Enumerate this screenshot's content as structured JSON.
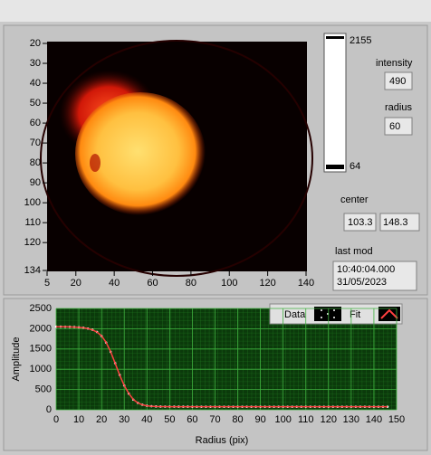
{
  "image_panel": {
    "yticks": [
      20,
      30,
      40,
      50,
      60,
      70,
      80,
      90,
      100,
      110,
      120,
      134
    ],
    "ylim": [
      20,
      134
    ],
    "xticks": [
      5,
      20,
      40,
      60,
      80,
      100,
      120,
      140
    ],
    "xlim": [
      5,
      140
    ],
    "colorbar": {
      "max": 2155,
      "min": 64
    }
  },
  "controls": {
    "intensity": {
      "label": "intensity",
      "value": 490
    },
    "radius": {
      "label": "radius",
      "value": 60
    },
    "center": {
      "label": "center",
      "x": 103.3,
      "y": 148.3
    },
    "last_mod": {
      "label": "last mod",
      "time": "10:40:04.000",
      "date": "31/05/2023"
    }
  },
  "chart_data": {
    "type": "line",
    "xlabel": "Radius (pix)",
    "ylabel": "Amplitude",
    "xlim": [
      0,
      150
    ],
    "ylim": [
      0,
      2500
    ],
    "xticks": [
      0,
      10,
      20,
      30,
      40,
      50,
      60,
      70,
      80,
      90,
      100,
      110,
      120,
      130,
      140,
      150
    ],
    "yticks": [
      0,
      500,
      1000,
      1500,
      2000,
      2500
    ],
    "x": [
      0,
      2,
      4,
      6,
      8,
      10,
      12,
      14,
      16,
      18,
      20,
      22,
      24,
      26,
      28,
      30,
      32,
      34,
      36,
      38,
      40,
      42,
      44,
      46,
      48,
      50,
      52,
      54,
      56,
      58,
      60,
      62,
      64,
      66,
      68,
      70,
      72,
      74,
      76,
      78,
      80,
      82,
      84,
      86,
      88,
      90,
      92,
      94,
      96,
      98,
      100,
      102,
      104,
      106,
      108,
      110,
      112,
      114,
      116,
      118,
      120,
      122,
      124,
      126,
      128,
      130,
      132,
      134,
      136,
      138,
      140,
      142,
      144,
      146
    ],
    "series": [
      {
        "name": "Data",
        "color": "#ffffff",
        "values": [
          2050,
          2050,
          2048,
          2046,
          2042,
          2035,
          2025,
          2005,
          1975,
          1920,
          1820,
          1660,
          1430,
          1150,
          860,
          600,
          400,
          250,
          170,
          125,
          100,
          88,
          82,
          79,
          78,
          77,
          77,
          76,
          76,
          76,
          75,
          75,
          75,
          75,
          75,
          75,
          75,
          75,
          75,
          75,
          75,
          75,
          75,
          75,
          75,
          75,
          75,
          75,
          75,
          75,
          75,
          75,
          75,
          75,
          75,
          75,
          75,
          75,
          75,
          75,
          75,
          75,
          75,
          75,
          75,
          75,
          75,
          75,
          75,
          75,
          75,
          75,
          75,
          75
        ]
      },
      {
        "name": "Fit",
        "color": "#ff4040",
        "values": [
          2049,
          2049,
          2047,
          2045,
          2041,
          2034,
          2023,
          2004,
          1972,
          1918,
          1825,
          1665,
          1435,
          1148,
          855,
          598,
          402,
          255,
          168,
          122,
          98,
          87,
          81,
          78,
          77,
          76,
          76,
          76,
          75,
          75,
          75,
          75,
          75,
          75,
          75,
          75,
          75,
          75,
          75,
          75,
          75,
          75,
          75,
          75,
          75,
          75,
          75,
          75,
          75,
          75,
          75,
          75,
          75,
          75,
          75,
          75,
          75,
          75,
          75,
          75,
          75,
          75,
          75,
          75,
          75,
          75,
          75,
          75,
          75,
          75,
          75,
          75,
          75,
          75
        ]
      }
    ]
  }
}
